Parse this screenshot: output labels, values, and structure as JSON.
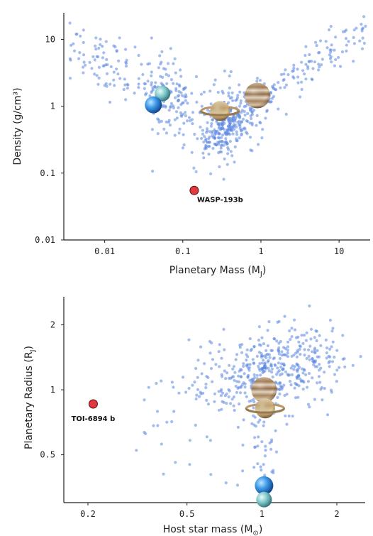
{
  "chart_data": [
    {
      "type": "scatter",
      "x_label_main": "Planetary Mass (M",
      "x_label_sub": "J",
      "x_label_end": ")",
      "y_label": "Density (g/cm³)",
      "x_scale": "log",
      "y_scale": "log",
      "xlim": [
        0.003,
        25
      ],
      "ylim": [
        0.01,
        25
      ],
      "x_ticks": [
        {
          "value": 0.01,
          "label": "0.01"
        },
        {
          "value": 0.1,
          "label": "0.1"
        },
        {
          "value": 1,
          "label": "1"
        },
        {
          "value": 10,
          "label": "10"
        }
      ],
      "y_ticks": [
        {
          "value": 0.01,
          "label": "0.01"
        },
        {
          "value": 0.1,
          "label": "0.1"
        },
        {
          "value": 1,
          "label": "1"
        },
        {
          "value": 10,
          "label": "10"
        }
      ],
      "highlight": {
        "name": "WASP-193b",
        "x": 0.14,
        "y": 0.055,
        "color": "#e03a3e"
      },
      "planet_icons": [
        {
          "icon": "uranus-icon",
          "x": 0.055,
          "y": 1.55
        },
        {
          "icon": "neptune-icon",
          "x": 0.042,
          "y": 1.05
        },
        {
          "icon": "saturn-icon",
          "x": 0.3,
          "y": 0.85
        },
        {
          "icon": "jupiter-icon",
          "x": 0.9,
          "y": 1.45
        }
      ],
      "population_color": "#5b87e0"
    },
    {
      "type": "scatter",
      "x_label_main": "Host star mass (M",
      "x_label_sub": "⊙",
      "x_label_end": ")",
      "y_label_main": "Planetary Radius (R",
      "y_label_sub": "J",
      "y_label_end": ")",
      "x_scale": "log",
      "y_scale": "log",
      "xlim": [
        0.16,
        2.6
      ],
      "ylim": [
        0.3,
        2.7
      ],
      "x_ticks": [
        {
          "value": 0.2,
          "label": "0.2"
        },
        {
          "value": 0.5,
          "label": "0.5"
        },
        {
          "value": 1,
          "label": "1"
        },
        {
          "value": 2,
          "label": "2"
        }
      ],
      "y_ticks": [
        {
          "value": 0.5,
          "label": "0.5"
        },
        {
          "value": 1,
          "label": "1"
        },
        {
          "value": 2,
          "label": "2"
        }
      ],
      "highlight": {
        "name": "TOI-6894 b",
        "x": 0.21,
        "y": 0.86,
        "color": "#e03a3e"
      },
      "planet_icons": [
        {
          "icon": "jupiter-icon",
          "x": 1.02,
          "y": 1.0
        },
        {
          "icon": "saturn-icon",
          "x": 1.03,
          "y": 0.82
        },
        {
          "icon": "neptune-icon",
          "x": 1.02,
          "y": 0.36
        },
        {
          "icon": "uranus-icon",
          "x": 1.02,
          "y": 0.31
        }
      ],
      "population_color": "#5b87e0"
    }
  ]
}
